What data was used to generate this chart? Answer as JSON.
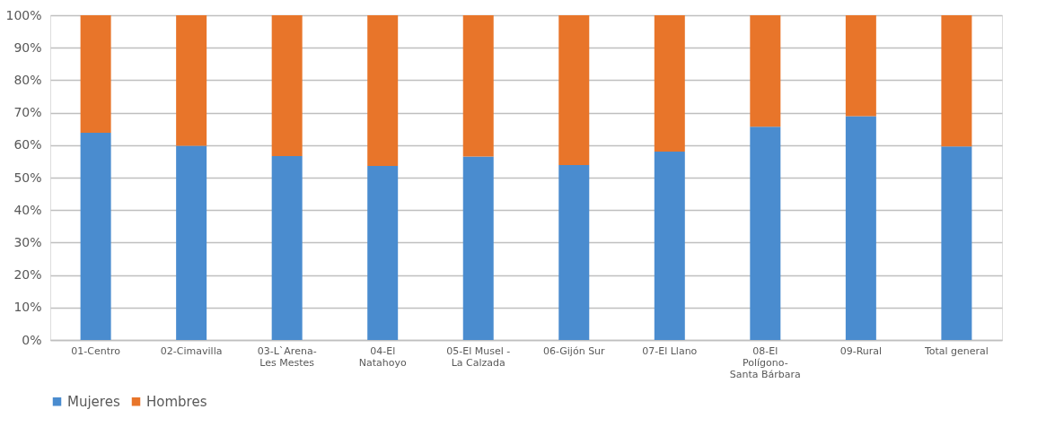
{
  "chart_data": {
    "type": "bar",
    "stacked": true,
    "categories": [
      "01-Centro",
      "02-Cimavilla",
      "03-L`Arena-\nLes Mestes",
      "04-El\nNatahoyo",
      "05-El Musel -\nLa Calzada",
      "06-Gijón Sur",
      "07-El Llano",
      "08-El\nPolígono-\nSanta Bárbara",
      "09-Rural",
      "Total general"
    ],
    "series": [
      {
        "name": "Mujeres",
        "color": "#4a8ccf",
        "values": [
          63.8,
          59.8,
          56.6,
          53.6,
          56.5,
          53.9,
          58.0,
          65.7,
          68.9,
          59.6
        ]
      },
      {
        "name": "Hombres",
        "color": "#e8752a",
        "values": [
          36.2,
          40.2,
          43.4,
          46.4,
          43.5,
          46.1,
          42.0,
          34.3,
          31.1,
          40.4
        ]
      }
    ],
    "ylim": [
      0,
      100
    ],
    "yticks": [
      {
        "value": 0,
        "label": "0%"
      },
      {
        "value": 10,
        "label": "10%"
      },
      {
        "value": 20,
        "label": "20%"
      },
      {
        "value": 30,
        "label": "30%"
      },
      {
        "value": 40,
        "label": "40%"
      },
      {
        "value": 50,
        "label": "50%"
      },
      {
        "value": 60,
        "label": "60%"
      },
      {
        "value": 70,
        "label": "70%"
      },
      {
        "value": 80,
        "label": "80%"
      },
      {
        "value": 90,
        "label": "90%"
      },
      {
        "value": 100,
        "label": "100%"
      }
    ],
    "grid": "y",
    "legend": "bottom"
  }
}
